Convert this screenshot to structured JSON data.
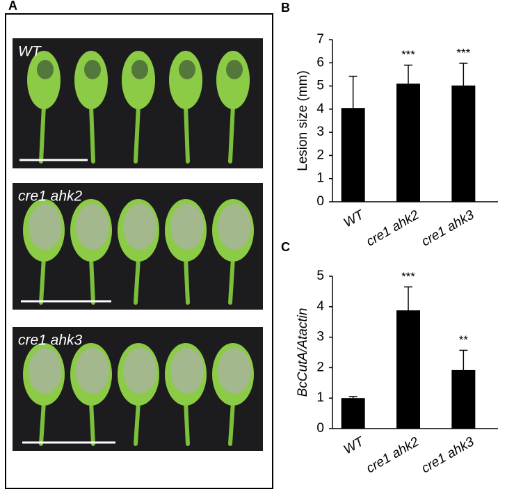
{
  "photo_panel": {
    "panel": "A",
    "photos": [
      {
        "label": "WT"
      },
      {
        "label": "cre1 ahk2"
      },
      {
        "label": "cre1 ahk3"
      }
    ]
  },
  "chart_data": [
    {
      "type": "bar",
      "panel": "B",
      "ylabel": "Lesion size (mm)",
      "categories": [
        "WT",
        "cre1 ahk2",
        "cre1 ahk3"
      ],
      "values": [
        4.05,
        5.1,
        5.02
      ],
      "errors": [
        1.37,
        0.8,
        0.96
      ],
      "annotations": [
        null,
        "***",
        "***"
      ],
      "color": "#000000",
      "ylim": [
        0,
        7
      ],
      "yticks": [
        0,
        1,
        2,
        3,
        4,
        5,
        6,
        7
      ]
    },
    {
      "type": "bar",
      "panel": "C",
      "ylabel": "BcCutA/Atactin",
      "categories": [
        "WT",
        "cre1 ahk2",
        "cre1 ahk3"
      ],
      "values": [
        1.0,
        3.88,
        1.92
      ],
      "errors": [
        0.05,
        0.77,
        0.65
      ],
      "annotations": [
        null,
        "***",
        "**"
      ],
      "color": "#000000",
      "ylim": [
        0,
        5
      ],
      "yticks": [
        0,
        1,
        2,
        3,
        4,
        5
      ]
    }
  ]
}
